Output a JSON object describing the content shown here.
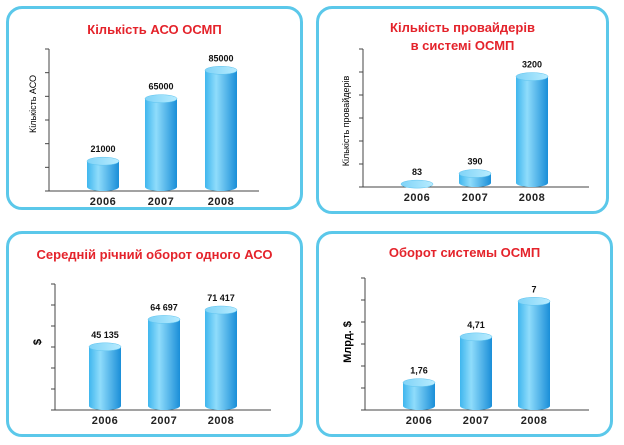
{
  "chart_data": [
    {
      "type": "bar",
      "title": "Кількість АСО ОСМП",
      "ylabel": "Кількість АСО",
      "ylabel_style": "normal",
      "categories": [
        "2006",
        "2007",
        "2008"
      ],
      "values": [
        21000,
        65000,
        85000
      ],
      "value_labels": [
        "21000",
        "65000",
        "85000"
      ],
      "ylim": [
        0,
        100000
      ]
    },
    {
      "type": "bar",
      "title": "Кількість провайдерів\nв системі ОСМП",
      "ylabel": "Кількість провайдерів",
      "ylabel_style": "normal",
      "categories": [
        "2006",
        "2007",
        "2008"
      ],
      "values": [
        83,
        390,
        3200
      ],
      "value_labels": [
        "83",
        "390",
        "3200"
      ],
      "ylim": [
        0,
        4000
      ]
    },
    {
      "type": "bar",
      "title": "Середній річний оборот одного АСО",
      "ylabel": "$",
      "ylabel_style": "bold",
      "categories": [
        "2006",
        "2007",
        "2008"
      ],
      "values": [
        45135,
        64697,
        71417
      ],
      "value_labels": [
        "45 135",
        "64 697",
        "71 417"
      ],
      "ylim": [
        0,
        90000
      ]
    },
    {
      "type": "bar",
      "title": "Оборот системы  ОСМП",
      "ylabel": "Млрд. $",
      "ylabel_style": "bold",
      "categories": [
        "2006",
        "2007",
        "2008"
      ],
      "values": [
        1.76,
        4.71,
        7
      ],
      "value_labels": [
        "1,76",
        "4,71",
        "7"
      ],
      "ylim": [
        0,
        8.5
      ]
    }
  ],
  "colors": {
    "border": "#5bc8ea",
    "title": "#e4232b",
    "bar_light": "#8fdcfb",
    "bar_mid": "#3fb6ee",
    "bar_dark": "#1a8ed8",
    "axis": "#444444"
  }
}
